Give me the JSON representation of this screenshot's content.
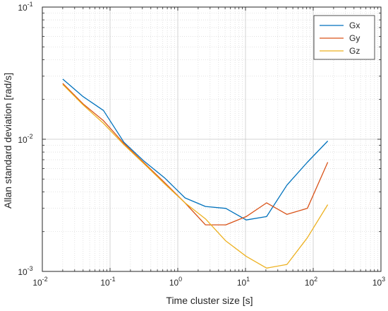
{
  "chart_data": {
    "type": "line",
    "xscale": "log",
    "yscale": "log",
    "xlim": [
      0.01,
      1000
    ],
    "ylim": [
      0.001,
      0.1
    ],
    "xlabel": "Time cluster size [s]",
    "ylabel": "Allan standard deviation [rad/s]",
    "grid": true,
    "legend_position": "top-right",
    "x_ticks": [
      {
        "value": 0.01,
        "base": "10",
        "exp": "-2"
      },
      {
        "value": 0.1,
        "base": "10",
        "exp": "-1"
      },
      {
        "value": 1,
        "base": "10",
        "exp": "0"
      },
      {
        "value": 10,
        "base": "10",
        "exp": "1"
      },
      {
        "value": 100,
        "base": "10",
        "exp": "2"
      },
      {
        "value": 1000,
        "base": "10",
        "exp": "3"
      }
    ],
    "y_ticks": [
      {
        "value": 0.001,
        "base": "10",
        "exp": "-3"
      },
      {
        "value": 0.01,
        "base": "10",
        "exp": "-2"
      },
      {
        "value": 0.1,
        "base": "10",
        "exp": "-1"
      }
    ],
    "series": [
      {
        "name": "Gx",
        "color": "#0072BD",
        "points": [
          [
            0.02,
            0.0285
          ],
          [
            0.04,
            0.021
          ],
          [
            0.08,
            0.0165
          ],
          [
            0.16,
            0.0095
          ],
          [
            0.32,
            0.0068
          ],
          [
            0.64,
            0.0051
          ],
          [
            1.28,
            0.0036
          ],
          [
            2.56,
            0.0031
          ],
          [
            5.12,
            0.003
          ],
          [
            10.24,
            0.00245
          ],
          [
            20.48,
            0.0026
          ],
          [
            40.96,
            0.0045
          ],
          [
            81.92,
            0.0067
          ],
          [
            163.84,
            0.0097
          ]
        ]
      },
      {
        "name": "Gy",
        "color": "#D95319",
        "points": [
          [
            0.02,
            0.0265
          ],
          [
            0.04,
            0.0185
          ],
          [
            0.08,
            0.0138
          ],
          [
            0.16,
            0.0093
          ],
          [
            0.32,
            0.0066
          ],
          [
            0.64,
            0.0047
          ],
          [
            1.28,
            0.0033
          ],
          [
            2.56,
            0.00225
          ],
          [
            5.12,
            0.00225
          ],
          [
            10.24,
            0.0026
          ],
          [
            20.48,
            0.0033
          ],
          [
            40.96,
            0.0027
          ],
          [
            81.92,
            0.003
          ],
          [
            163.84,
            0.0067
          ]
        ]
      },
      {
        "name": "Gz",
        "color": "#EDB120",
        "points": [
          [
            0.02,
            0.026
          ],
          [
            0.04,
            0.0182
          ],
          [
            0.08,
            0.0132
          ],
          [
            0.16,
            0.0091
          ],
          [
            0.32,
            0.0065
          ],
          [
            0.64,
            0.0046
          ],
          [
            1.28,
            0.0033
          ],
          [
            2.56,
            0.0025
          ],
          [
            5.12,
            0.0017
          ],
          [
            10.24,
            0.0013
          ],
          [
            20.48,
            0.00106
          ],
          [
            40.96,
            0.00113
          ],
          [
            81.92,
            0.0018
          ],
          [
            163.84,
            0.0032
          ]
        ]
      }
    ]
  }
}
